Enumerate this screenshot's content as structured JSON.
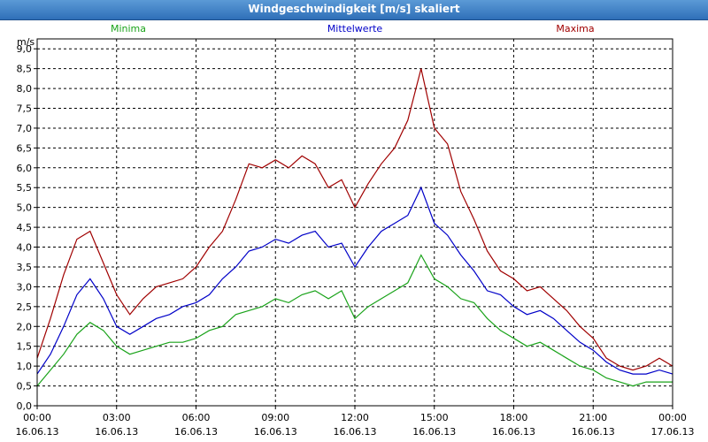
{
  "window": {
    "title": "Windgeschwindigkeit [m/s] skaliert"
  },
  "colors": {
    "minima": "#1aa31a",
    "mittelwerte": "#0000c8",
    "maxima": "#a00000",
    "grid": "#000000"
  },
  "chart_data": {
    "type": "line",
    "title": "Windgeschwindigkeit [m/s] skaliert",
    "ylabel": "m/s",
    "ylim": [
      0,
      9.25
    ],
    "yticks": [
      "0,0",
      "0,5",
      "1,0",
      "1,5",
      "2,0",
      "2,5",
      "3,0",
      "3,5",
      "4,0",
      "4,5",
      "5,0",
      "5,5",
      "6,0",
      "6,5",
      "7,0",
      "7,5",
      "8,0",
      "8,5",
      "9,0"
    ],
    "xlim": [
      0,
      24
    ],
    "xticks": [
      {
        "time": "00:00",
        "date": "16.06.13"
      },
      {
        "time": "03:00",
        "date": "16.06.13"
      },
      {
        "time": "06:00",
        "date": "16.06.13"
      },
      {
        "time": "09:00",
        "date": "16.06.13"
      },
      {
        "time": "12:00",
        "date": "16.06.13"
      },
      {
        "time": "15:00",
        "date": "16.06.13"
      },
      {
        "time": "18:00",
        "date": "16.06.13"
      },
      {
        "time": "21:00",
        "date": "16.06.13"
      },
      {
        "time": "00:00",
        "date": "17.06.13"
      }
    ],
    "grid": true,
    "x": [
      0,
      0.5,
      1,
      1.5,
      2,
      2.5,
      3,
      3.5,
      4,
      4.5,
      5,
      5.5,
      6,
      6.5,
      7,
      7.5,
      8,
      8.5,
      9,
      9.5,
      10,
      10.5,
      11,
      11.5,
      12,
      12.5,
      13,
      13.5,
      14,
      14.5,
      15,
      15.5,
      16,
      16.5,
      17,
      17.5,
      18,
      18.5,
      19,
      19.5,
      20,
      20.5,
      21,
      21.5,
      22,
      22.5,
      23,
      23.5,
      24
    ],
    "series": [
      {
        "name": "Minima",
        "color": "#1aa31a",
        "values": [
          0.5,
          0.9,
          1.3,
          1.8,
          2.1,
          1.9,
          1.5,
          1.3,
          1.4,
          1.5,
          1.6,
          1.6,
          1.7,
          1.9,
          2.0,
          2.3,
          2.4,
          2.5,
          2.7,
          2.6,
          2.8,
          2.9,
          2.7,
          2.9,
          2.2,
          2.5,
          2.7,
          2.9,
          3.1,
          3.8,
          3.2,
          3.0,
          2.7,
          2.6,
          2.2,
          1.9,
          1.7,
          1.5,
          1.6,
          1.4,
          1.2,
          1.0,
          0.9,
          0.7,
          0.6,
          0.5,
          0.6,
          0.6,
          0.6
        ]
      },
      {
        "name": "Mittelwerte",
        "color": "#0000c8",
        "values": [
          0.8,
          1.3,
          2.0,
          2.8,
          3.2,
          2.7,
          2.0,
          1.8,
          2.0,
          2.2,
          2.3,
          2.5,
          2.6,
          2.8,
          3.2,
          3.5,
          3.9,
          4.0,
          4.2,
          4.1,
          4.3,
          4.4,
          4.0,
          4.1,
          3.5,
          4.0,
          4.4,
          4.6,
          4.8,
          5.5,
          4.6,
          4.3,
          3.8,
          3.4,
          2.9,
          2.8,
          2.5,
          2.3,
          2.4,
          2.2,
          1.9,
          1.6,
          1.4,
          1.1,
          0.9,
          0.8,
          0.8,
          0.9,
          0.8
        ]
      },
      {
        "name": "Maxima",
        "color": "#a00000",
        "values": [
          1.2,
          2.2,
          3.3,
          4.2,
          4.4,
          3.6,
          2.8,
          2.3,
          2.7,
          3.0,
          3.1,
          3.2,
          3.5,
          4.0,
          4.4,
          5.2,
          6.1,
          6.0,
          6.2,
          6.0,
          6.3,
          6.1,
          5.5,
          5.7,
          5.0,
          5.6,
          6.1,
          6.5,
          7.2,
          8.5,
          7.0,
          6.6,
          5.4,
          4.7,
          3.9,
          3.4,
          3.2,
          2.9,
          3.0,
          2.7,
          2.4,
          2.0,
          1.7,
          1.2,
          1.0,
          0.9,
          1.0,
          1.2,
          1.0
        ]
      }
    ],
    "legend": [
      {
        "label": "Minima",
        "color": "#1aa31a"
      },
      {
        "label": "Mittelwerte",
        "color": "#0000c8"
      },
      {
        "label": "Maxima",
        "color": "#a00000"
      }
    ]
  }
}
